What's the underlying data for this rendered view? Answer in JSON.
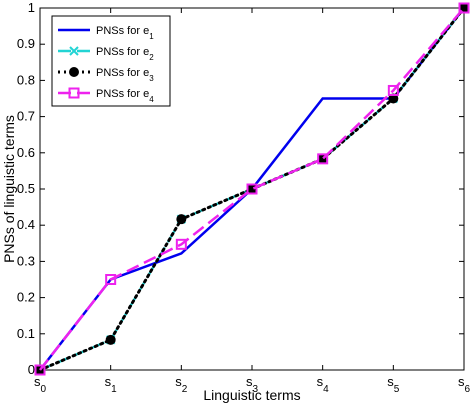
{
  "chart_data": {
    "type": "line",
    "xlabel": "Linguistic terms",
    "ylabel": "PNSs of linguistic terms",
    "categories": [
      {
        "base": "s",
        "sub": "0"
      },
      {
        "base": "s",
        "sub": "1"
      },
      {
        "base": "s",
        "sub": "2"
      },
      {
        "base": "s",
        "sub": "3"
      },
      {
        "base": "s",
        "sub": "4"
      },
      {
        "base": "s",
        "sub": "5"
      },
      {
        "base": "s",
        "sub": "6"
      }
    ],
    "x": [
      0,
      1,
      2,
      3,
      4,
      5,
      6
    ],
    "xlim": [
      0,
      6
    ],
    "ylim": [
      0,
      1
    ],
    "yticks": [
      "0",
      "0.1",
      "0.2",
      "0.3",
      "0.4",
      "0.5",
      "0.6",
      "0.7",
      "0.8",
      "0.9",
      "1"
    ],
    "yticks_values": [
      0,
      0.1,
      0.2,
      0.3,
      0.4,
      0.5,
      0.6,
      0.7,
      0.8,
      0.9,
      1
    ],
    "grid": false,
    "legend_position": "top-left",
    "series": [
      {
        "name_base": "PNSs for e",
        "name_sub": "1",
        "color": "#0000ee",
        "dash": "solid",
        "marker": "none",
        "values": [
          0,
          0.25,
          0.3222,
          0.5,
          0.75,
          0.75,
          1
        ]
      },
      {
        "name_base": "PNSs for e",
        "name_sub": "2",
        "color": "#22d4d4",
        "dash": "dashed",
        "marker": "x",
        "values": [
          0,
          0.0833,
          0.4167,
          0.5,
          0.5833,
          0.75,
          1
        ]
      },
      {
        "name_base": "PNSs for e",
        "name_sub": "3",
        "color": "#000000",
        "dash": "dotted",
        "marker": "circle",
        "values": [
          0,
          0.0833,
          0.4167,
          0.5,
          0.5833,
          0.75,
          1
        ]
      },
      {
        "name_base": "PNSs for e",
        "name_sub": "4",
        "color": "#ee22ee",
        "dash": "dashed",
        "marker": "square",
        "values": [
          0,
          0.25,
          0.3472,
          0.5,
          0.5833,
          0.7722,
          1
        ]
      }
    ]
  }
}
